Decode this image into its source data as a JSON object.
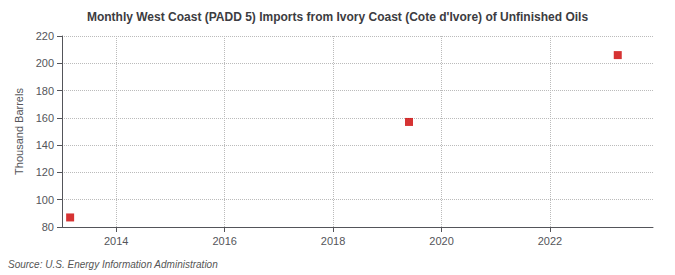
{
  "chart_data": {
    "type": "scatter",
    "title": "Monthly West Coast (PADD 5) Imports from Ivory Coast (Cote d'Ivore) of Unfinished Oils",
    "ylabel": "Thousand Barrels",
    "annotation": "Source: U.S. Energy Information Administration",
    "x": [
      2013.15,
      2019.4,
      2023.25
    ],
    "values": [
      87,
      157,
      206
    ],
    "color": "#cc0000",
    "marker": "square",
    "xlim": [
      2013.0,
      2023.9
    ],
    "xticks": [
      2014,
      2016,
      2018,
      2020,
      2022
    ],
    "ylim": [
      80,
      220
    ],
    "yticks": [
      80,
      100,
      120,
      140,
      160,
      180,
      200,
      220
    ],
    "grid": true
  }
}
